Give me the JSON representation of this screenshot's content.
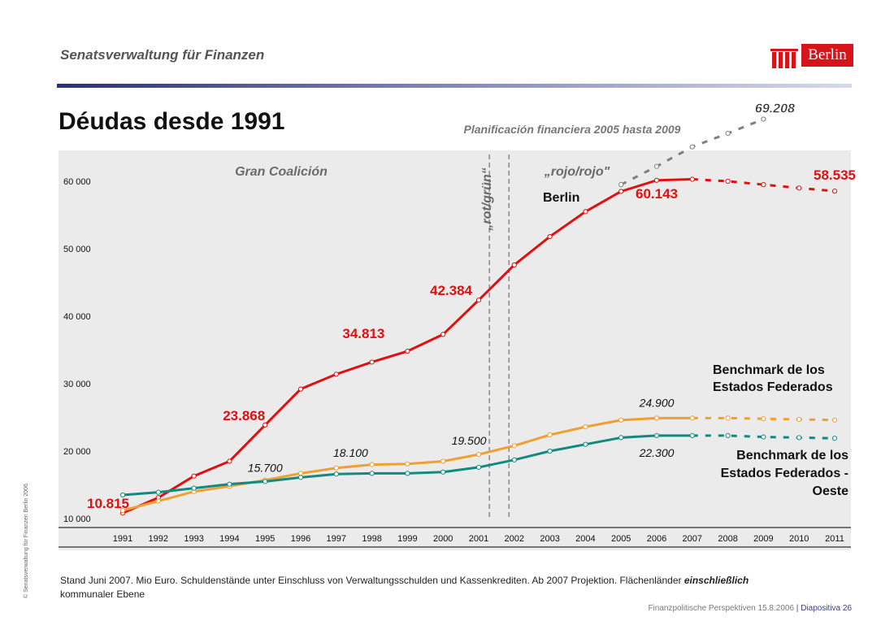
{
  "header": {
    "department": "Senatsverwaltung für Finanzen",
    "logo_text": "Berlin"
  },
  "page": {
    "title": "Déudas desde 1991"
  },
  "chart_data": {
    "type": "line",
    "x": [
      "1991",
      "1992",
      "1993",
      "1994",
      "1995",
      "1996",
      "1997",
      "1998",
      "1999",
      "2000",
      "2001",
      "2002",
      "2003",
      "2004",
      "2005",
      "2006",
      "2007",
      "2008",
      "2009",
      "2010",
      "2011"
    ],
    "ylim": [
      10000,
      63000
    ],
    "yticks": [
      10000,
      20000,
      30000,
      40000,
      50000,
      60000
    ],
    "ytick_labels": [
      "10 000",
      "20 000",
      "30 000",
      "40 000",
      "50 000",
      "60 000"
    ],
    "grid": false,
    "projection_start": "2007",
    "series": [
      {
        "name": "Berlin",
        "color": "#e01010",
        "values": [
          10815,
          13100,
          16300,
          18500,
          23868,
          29200,
          31400,
          33200,
          34813,
          37300,
          42384,
          47600,
          51800,
          55500,
          58500,
          60143,
          60300,
          60000,
          59500,
          59000,
          58535
        ]
      },
      {
        "name": "",
        "color": "#808080",
        "x": [
          "2005",
          "2006",
          "2007",
          "2008",
          "2009"
        ],
        "values": [
          59500,
          62200,
          65100,
          67100,
          69208
        ]
      },
      {
        "name": "Benchmark de los Estados Federados",
        "color": "#f0a030",
        "values": [
          11200,
          12600,
          14000,
          14800,
          15700,
          16700,
          17500,
          18000,
          18100,
          18500,
          19500,
          20800,
          22400,
          23600,
          24600,
          24900,
          24900,
          24900,
          24800,
          24700,
          24600
        ]
      },
      {
        "name": "Benchmark de los Estados Federados - Oeste",
        "color": "#128a80",
        "values": [
          13500,
          13900,
          14500,
          15100,
          15500,
          16100,
          16600,
          16700,
          16700,
          16900,
          17600,
          18700,
          20000,
          21000,
          22000,
          22300,
          22300,
          22300,
          22100,
          22000,
          21900
        ]
      }
    ],
    "labels": {
      "gran_coalicion": "Gran Coalición",
      "rotgruen": "„rot/grün“",
      "rojo_rojo": "„rojo/rojo\"",
      "planning": "Planificación financiera 2005 hasta 2009",
      "berlin": "Berlin",
      "bench_line1": "Benchmark de los",
      "bench_line2": "Estados Federados",
      "west_line1": "Benchmark de los",
      "west_line2": "Estados Federados -",
      "west_line3": "Oeste"
    },
    "annotations": [
      {
        "text": "10.815",
        "x": "1991",
        "y": 10815,
        "style": "red"
      },
      {
        "text": "23.868",
        "x": "1995",
        "y": 23868,
        "style": "red"
      },
      {
        "text": "34.813",
        "x": "1999",
        "y": 34813,
        "style": "red"
      },
      {
        "text": "42.384",
        "x": "2001",
        "y": 42384,
        "style": "red"
      },
      {
        "text": "60.143",
        "x": "2006",
        "y": 60143,
        "style": "red"
      },
      {
        "text": "58.535",
        "x": "2011",
        "y": 58535,
        "style": "red"
      },
      {
        "text": "69.208",
        "x": "2009",
        "y": 69208,
        "style": "grey"
      },
      {
        "text": "15.700",
        "x": "1995",
        "y": 15700,
        "style": "italic"
      },
      {
        "text": "18.100",
        "x": "1999",
        "y": 18100,
        "style": "italic"
      },
      {
        "text": "19.500",
        "x": "2001",
        "y": 19500,
        "style": "italic"
      },
      {
        "text": "24.900",
        "x": "2006",
        "y": 24900,
        "style": "italic"
      },
      {
        "text": "22.300",
        "x": "2006",
        "y": 22300,
        "style": "italic"
      }
    ]
  },
  "footnote": {
    "text_before": "Stand Juni  2007.  Mio Euro.  Schuldenstände unter Einschluss von Verwaltungsschulden und Kassenkrediten. Ab 2007 Projektion. Flächenländer ",
    "emphasis": "einschließlich",
    "text_after": "kommunaler Ebene"
  },
  "footer": {
    "left": "Finanzpolitische Perspektiven 15.8.2006",
    "separator": "|",
    "right": "Diapositiva 26"
  },
  "sidebar": {
    "copyright": "© Senatsverwaltung für Finanzen Berlin 2006"
  }
}
